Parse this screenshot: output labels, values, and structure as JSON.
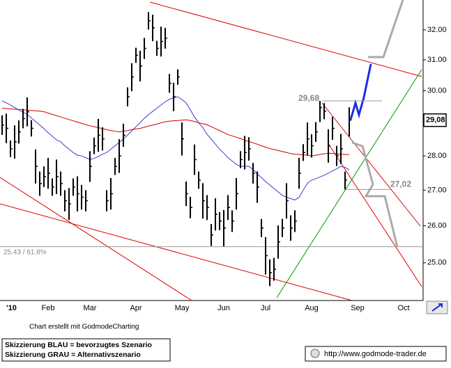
{
  "chart_data": {
    "type": "ohlc",
    "categories": [
      null,
      "'10",
      null,
      null,
      null,
      null,
      null,
      null,
      null,
      null,
      null,
      "Feb",
      null,
      null,
      null,
      null,
      null,
      null,
      null,
      null,
      null,
      "Mar",
      null,
      null,
      null,
      null,
      null,
      null,
      null,
      null,
      null,
      null,
      "Apr",
      null,
      null,
      null,
      null,
      null,
      null,
      null,
      null,
      null,
      null,
      "May",
      null,
      null,
      null,
      null,
      null,
      null,
      null,
      null,
      null,
      "Jun",
      null,
      null,
      null,
      null,
      null,
      null,
      null,
      null,
      null,
      "Jul",
      null,
      null,
      null,
      null,
      null,
      null,
      null,
      null,
      null,
      null,
      "Aug",
      null,
      null,
      null,
      null,
      null,
      null,
      null,
      null,
      null,
      null,
      "Sep",
      null,
      null,
      null,
      null,
      null,
      null,
      null,
      null,
      null,
      null,
      "Oct",
      null,
      null,
      null
    ],
    "high": [
      29.23,
      29.28,
      28.46,
      28.92,
      29.07,
      29.43,
      29.79,
      29.08,
      28.19,
      27.54,
      27.69,
      27.94,
      27.34,
      27.89,
      27.54,
      27.0,
      27.06,
      27.34,
      27.4,
      27.15,
      27.0,
      28.14,
      28.55,
      29.12,
      28.86,
      27.0,
      27.35,
      27.94,
      28.5,
      28.97,
      30.11,
      30.89,
      31.4,
      31.3,
      31.73,
      32.61,
      32.52,
      31.63,
      32.11,
      32.07,
      30.54,
      30.26,
      30.69,
      29.01,
      27.25,
      26.81,
      28.34,
      27.54,
      27.2,
      26.86,
      26.05,
      26.77,
      26.38,
      26.44,
      26.86,
      26.43,
      27.35,
      28.14,
      28.6,
      28.56,
      27.79,
      27.54,
      26.19,
      25.69,
      25.09,
      25.13,
      26.01,
      26.19,
      27.2,
      26.29,
      26.43,
      27.94,
      28.35,
      29.01,
      28.65,
      29.02,
      29.68,
      29.61,
      28.8,
      29.18,
      28.3,
      28.66,
      27.54,
      29.48,
      null,
      null,
      null,
      null,
      null,
      null,
      null,
      null,
      null,
      null,
      null,
      null,
      null,
      null,
      null,
      null
    ],
    "low": [
      28.63,
      28.38,
      27.96,
      27.92,
      28.37,
      28.83,
      28.89,
      28.58,
      27.19,
      26.84,
      27.09,
      27.04,
      26.84,
      26.89,
      26.84,
      26.4,
      26.16,
      26.84,
      26.4,
      26.45,
      26.4,
      27.24,
      28.05,
      28.12,
      28.16,
      26.4,
      26.45,
      27.44,
      27.5,
      28.27,
      29.51,
      29.99,
      30.9,
      30.3,
      31.03,
      32.01,
      31.62,
      31.13,
      31.11,
      31.37,
      29.94,
      29.36,
      30.19,
      28.01,
      26.55,
      26.21,
      27.44,
      27.04,
      26.2,
      26.16,
      25.45,
      25.87,
      25.88,
      25.44,
      26.16,
      25.83,
      26.45,
      27.64,
      27.6,
      27.86,
      27.19,
      26.64,
      25.69,
      24.69,
      24.39,
      24.53,
      25.11,
      25.69,
      26.2,
      25.59,
      25.83,
      27.04,
      27.85,
      28.01,
      27.95,
      28.42,
      29.02,
      29.11,
      27.8,
      28.48,
      27.7,
      27.76,
      27.02,
      28.58,
      null,
      null,
      null,
      null,
      null,
      null,
      null,
      null,
      null,
      null,
      null,
      null,
      null,
      null,
      null,
      null
    ],
    "close": [
      28.93,
      28.83,
      28.21,
      28.42,
      28.72,
      29.13,
      29.34,
      28.83,
      27.69,
      27.19,
      27.39,
      27.49,
      27.09,
      27.39,
      27.19,
      26.7,
      26.61,
      27.09,
      26.9,
      26.8,
      26.7,
      27.69,
      28.3,
      28.62,
      28.51,
      26.7,
      26.9,
      27.69,
      28.0,
      28.62,
      29.81,
      30.44,
      31.15,
      30.8,
      31.38,
      32.31,
      32.07,
      31.38,
      31.61,
      31.72,
      30.24,
      29.81,
      30.44,
      28.51,
      26.9,
      26.51,
      27.89,
      27.29,
      26.7,
      26.51,
      25.75,
      26.32,
      26.13,
      25.94,
      26.51,
      26.13,
      26.9,
      27.89,
      28.1,
      28.21,
      27.49,
      27.09,
      25.94,
      25.19,
      24.74,
      24.83,
      25.56,
      25.94,
      26.7,
      25.94,
      26.13,
      27.49,
      28.1,
      28.51,
      28.3,
      28.72,
      29.47,
      29.36,
      28.3,
      28.83,
      28.0,
      28.21,
      27.29,
      29.08,
      null,
      null,
      null,
      null,
      null,
      null,
      null,
      null,
      null,
      null,
      null,
      null,
      null,
      null,
      null,
      null
    ],
    "color": "#000000",
    "moving_averages": [
      {
        "color": "#3a3ad0",
        "values": [
          29.68,
          29.62,
          29.55,
          29.47,
          29.4,
          29.33,
          29.26,
          29.15,
          29.04,
          28.93,
          28.82,
          28.7,
          28.59,
          28.48,
          28.42,
          28.3,
          28.2,
          28.1,
          28.02,
          28.0,
          27.95,
          27.89,
          27.93,
          27.98,
          28.05,
          28.1,
          28.2,
          28.3,
          28.4,
          28.51,
          28.62,
          28.75,
          28.88,
          29.0,
          29.14,
          29.25,
          29.35,
          29.45,
          29.55,
          29.65,
          29.73,
          29.78,
          29.81,
          29.72,
          29.62,
          29.4,
          29.18,
          29.0,
          28.85,
          28.65,
          28.5,
          28.35,
          28.2,
          28.08,
          27.95,
          27.85,
          27.75,
          27.69,
          27.69,
          27.69,
          27.6,
          27.48,
          27.36,
          27.25,
          27.15,
          27.05,
          26.95,
          26.85,
          26.8,
          26.76,
          26.72,
          26.8,
          27.0,
          27.2,
          27.29,
          27.33,
          27.38,
          27.43,
          27.49,
          27.56,
          27.62,
          27.69,
          27.66,
          27.59,
          null,
          null,
          null,
          null,
          null,
          null,
          null,
          null,
          null,
          null,
          null,
          null,
          null,
          null,
          null,
          null
        ]
      },
      {
        "color": "#cc0000",
        "values": [
          29.45,
          29.44,
          29.43,
          29.42,
          29.41,
          29.4,
          29.39,
          29.38,
          29.37,
          29.36,
          29.34,
          29.3,
          29.26,
          29.22,
          29.18,
          29.14,
          29.1,
          29.06,
          29.02,
          28.98,
          28.94,
          28.91,
          28.88,
          28.85,
          28.82,
          28.79,
          28.76,
          28.74,
          28.72,
          28.74,
          28.76,
          28.79,
          28.81,
          28.83,
          28.86,
          28.9,
          28.93,
          28.96,
          29.0,
          29.03,
          29.05,
          29.06,
          29.07,
          29.08,
          29.09,
          29.07,
          29.04,
          29.0,
          28.97,
          28.94,
          28.88,
          28.82,
          28.76,
          28.7,
          28.64,
          28.6,
          28.56,
          28.52,
          28.47,
          28.43,
          28.39,
          28.35,
          28.3,
          28.26,
          28.22,
          28.19,
          28.16,
          28.13,
          28.1,
          28.07,
          28.05,
          28.04,
          28.03,
          28.02,
          28.0,
          28.02,
          28.04,
          28.06,
          28.08,
          28.07,
          28.06,
          28.05,
          28.04,
          28.04,
          null,
          null,
          null,
          null,
          null,
          null,
          null,
          null,
          null,
          null,
          null,
          null,
          null,
          null,
          null,
          null
        ]
      }
    ],
    "ylim": [
      24.02,
      33.03
    ],
    "log_scale": true,
    "yticks": [
      {
        "value": 25,
        "label": "25.00"
      },
      {
        "value": 26,
        "label": "26.00"
      },
      {
        "value": 27,
        "label": "27.00"
      },
      {
        "value": 28,
        "label": "28.00"
      },
      {
        "value": 29,
        "label": "29.00"
      },
      {
        "value": 30,
        "label": "30.00"
      },
      {
        "value": 31,
        "label": "31.00"
      },
      {
        "value": 32,
        "label": "32.00"
      }
    ],
    "levels": [
      {
        "value": 29.68,
        "label": "29,68"
      },
      {
        "value": 27.02,
        "label": "27,02"
      },
      {
        "value": 25.43,
        "label": "25.43 / 61.8%"
      }
    ],
    "last_label": {
      "value": 29.08,
      "label": "29,08"
    },
    "credit": "Chart erstellt mit GodmodeCharting",
    "notes": [
      "Skizzierung BLAU = bevorzugtes Szenario",
      "Skizzierung GRAU = Alternativszenario"
    ],
    "source": "http://www.godmode-trader.de"
  }
}
